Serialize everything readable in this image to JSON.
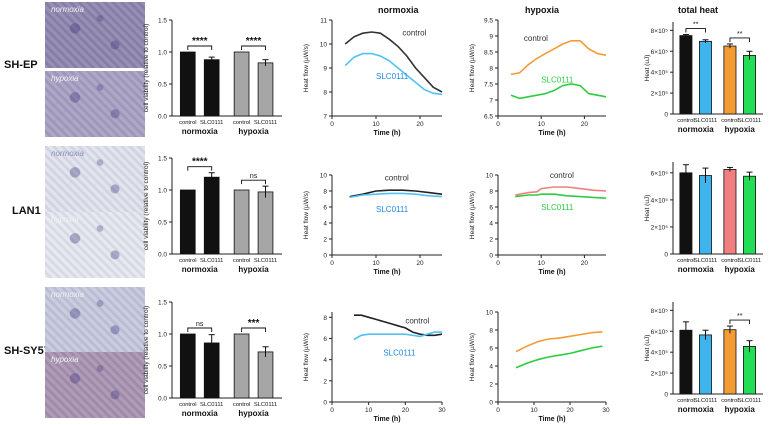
{
  "columns": {
    "normoxia": "normoxia",
    "hypoxia": "hypoxia",
    "total_heat": "total heat"
  },
  "rows": [
    {
      "label": "SH-EP",
      "micro_top": "normoxia",
      "micro_bottom": "hypoxia",
      "micro_colors": [
        "#8f86b0",
        "#a8a0c4"
      ]
    },
    {
      "label": "LAN1",
      "micro_top": "normoxia",
      "micro_bottom": "hypoxia",
      "micro_colors": [
        "#dfe2ee",
        "#e5e7f1"
      ]
    },
    {
      "label": "SH-SY5Y",
      "micro_top": "normoxia",
      "micro_bottom": "hypoxia",
      "micro_colors": [
        "#c6c8de",
        "#a994b3"
      ]
    }
  ],
  "chart_data": [
    {
      "id": "via0",
      "type": "bar",
      "ylabel": "cell viability (relative to control)",
      "yticks": [
        "0.0",
        "0.5",
        "1.0",
        "1.5"
      ],
      "ylim": [
        0,
        1.5
      ],
      "categories": [
        "control",
        "SLC0111",
        "control",
        "SLC0111"
      ],
      "values": [
        1.0,
        0.88,
        1.0,
        0.83
      ],
      "errors": [
        0,
        0.04,
        0,
        0.05
      ],
      "bar_colors": [
        "#111111",
        "#111111",
        "#a6a6a6",
        "#a6a6a6"
      ],
      "groups": [
        "normoxia",
        "hypoxia"
      ],
      "significance": [
        "****",
        "****"
      ]
    },
    {
      "id": "via1",
      "type": "bar",
      "ylabel": "cell viability (relative to control)",
      "yticks": [
        "0.0",
        "0.5",
        "1.0",
        "1.5"
      ],
      "ylim": [
        0,
        1.5
      ],
      "categories": [
        "control",
        "SLC0111",
        "control",
        "SLC0111"
      ],
      "values": [
        1.0,
        1.2,
        1.0,
        0.97
      ],
      "errors": [
        0,
        0.07,
        0,
        0.09
      ],
      "bar_colors": [
        "#111111",
        "#111111",
        "#a6a6a6",
        "#a6a6a6"
      ],
      "groups": [
        "normoxia",
        "hypoxia"
      ],
      "significance": [
        "****",
        "ns"
      ]
    },
    {
      "id": "via2",
      "type": "bar",
      "ylabel": "cell viability (relative to control)",
      "yticks": [
        "0.0",
        "0.5",
        "1.0",
        "1.5"
      ],
      "ylim": [
        0,
        1.5
      ],
      "categories": [
        "control",
        "SLC0111",
        "control",
        "SLC0111"
      ],
      "values": [
        1.0,
        0.86,
        1.0,
        0.72
      ],
      "errors": [
        0,
        0.13,
        0,
        0.08
      ],
      "bar_colors": [
        "#111111",
        "#111111",
        "#a6a6a6",
        "#a6a6a6"
      ],
      "groups": [
        "normoxia",
        "hypoxia"
      ],
      "significance": [
        "ns",
        "***"
      ]
    },
    {
      "id": "hn0",
      "type": "line",
      "xlabel": "Time (h)",
      "ylabel": "Heat flow (µW/s)",
      "xticks": [
        0,
        10,
        20
      ],
      "yticks": [
        7,
        8,
        9,
        10,
        11
      ],
      "xlim": [
        0,
        25
      ],
      "ylim": [
        7,
        11
      ],
      "series": [
        {
          "name": "control",
          "color": "#333333",
          "x": [
            3,
            5,
            7,
            9,
            11,
            13,
            15,
            17,
            19,
            21,
            23,
            25
          ],
          "y": [
            10.0,
            10.3,
            10.45,
            10.5,
            10.45,
            10.2,
            9.9,
            9.5,
            9.0,
            8.6,
            8.2,
            8.0
          ]
        },
        {
          "name": "SLC0111",
          "color": "#4fc3f7",
          "x": [
            3,
            5,
            7,
            9,
            11,
            13,
            15,
            17,
            19,
            21,
            23,
            25
          ],
          "y": [
            9.1,
            9.45,
            9.6,
            9.6,
            9.5,
            9.3,
            9.0,
            8.7,
            8.4,
            8.1,
            7.95,
            7.9
          ]
        }
      ],
      "labels": [
        {
          "text": "control",
          "x": 16,
          "y": 10.35,
          "color": "#333333"
        },
        {
          "text": "SLC0111",
          "x": 10,
          "y": 8.55,
          "color": "#1e88e5"
        }
      ]
    },
    {
      "id": "hh0",
      "type": "line",
      "xlabel": "Time (h)",
      "ylabel": "Heat flow (µW/s)",
      "xticks": [
        0,
        10,
        20
      ],
      "yticks": [
        6.5,
        7.0,
        7.5,
        8.0,
        8.5,
        9.0,
        9.5
      ],
      "ylim": [
        6.5,
        9.5
      ],
      "xlim": [
        0,
        25
      ],
      "series": [
        {
          "name": "control",
          "color": "#f39c34",
          "x": [
            3,
            5,
            7,
            9,
            11,
            13,
            15,
            17,
            19,
            21,
            23,
            25
          ],
          "y": [
            7.8,
            7.85,
            8.1,
            8.3,
            8.45,
            8.6,
            8.75,
            8.85,
            8.85,
            8.6,
            8.45,
            8.4
          ]
        },
        {
          "name": "SLC0111",
          "color": "#2ecc40",
          "x": [
            3,
            5,
            7,
            9,
            11,
            13,
            15,
            17,
            19,
            21,
            23,
            25
          ],
          "y": [
            7.15,
            7.05,
            7.1,
            7.15,
            7.2,
            7.3,
            7.45,
            7.5,
            7.45,
            7.2,
            7.15,
            7.1
          ]
        }
      ],
      "labels": [
        {
          "text": "control",
          "x": 6,
          "y": 8.85,
          "color": "#333333"
        },
        {
          "text": "SLC0111",
          "x": 10,
          "y": 7.55,
          "color": "#2ecc40"
        }
      ]
    },
    {
      "id": "hn1",
      "type": "line",
      "xlabel": "Time (h)",
      "ylabel": "Heat flow (µW/s)",
      "xticks": [
        0,
        10,
        20
      ],
      "yticks": [
        0,
        2,
        4,
        6,
        8,
        10
      ],
      "xlim": [
        0,
        25
      ],
      "ylim": [
        0,
        10
      ],
      "series": [
        {
          "name": "control",
          "color": "#222222",
          "x": [
            4,
            7,
            10,
            13,
            16,
            19,
            22,
            25
          ],
          "y": [
            7.3,
            7.6,
            8.0,
            8.1,
            8.1,
            8.0,
            7.8,
            7.6
          ]
        },
        {
          "name": "SLC0111",
          "color": "#4fc3f7",
          "x": [
            4,
            7,
            10,
            13,
            16,
            19,
            22,
            25
          ],
          "y": [
            7.2,
            7.5,
            7.6,
            7.7,
            7.7,
            7.6,
            7.4,
            7.3
          ]
        }
      ],
      "labels": [
        {
          "text": "control",
          "x": 12,
          "y": 9.3,
          "color": "#333333"
        },
        {
          "text": "SLC0111",
          "x": 10,
          "y": 5.4,
          "color": "#1e88e5"
        }
      ]
    },
    {
      "id": "hh1",
      "type": "line",
      "xlabel": "Time (h)",
      "ylabel": "Heat flow (µW/s)",
      "xticks": [
        0,
        10,
        20
      ],
      "yticks": [
        0,
        2,
        4,
        6,
        8,
        10
      ],
      "xlim": [
        0,
        25
      ],
      "ylim": [
        0,
        10
      ],
      "series": [
        {
          "name": "control",
          "color": "#f08080",
          "x": [
            4,
            7,
            9,
            10,
            13,
            16,
            19,
            22,
            25
          ],
          "y": [
            7.5,
            7.8,
            7.9,
            8.3,
            8.5,
            8.5,
            8.3,
            8.1,
            8.0
          ]
        },
        {
          "name": "SLC0111",
          "color": "#2ecc40",
          "x": [
            4,
            7,
            9,
            10,
            13,
            16,
            19,
            22,
            25
          ],
          "y": [
            7.3,
            7.5,
            7.5,
            7.6,
            7.6,
            7.4,
            7.3,
            7.2,
            7.1
          ]
        }
      ],
      "labels": [
        {
          "text": "control",
          "x": 12,
          "y": 9.6,
          "color": "#333333"
        },
        {
          "text": "SLC0111",
          "x": 10,
          "y": 5.6,
          "color": "#2ecc40"
        }
      ]
    },
    {
      "id": "hn2",
      "type": "line",
      "xlabel": "Time (h)",
      "ylabel": "Heat flow (µW/s)",
      "xticks": [
        0,
        10,
        20,
        30
      ],
      "yticks": [
        0,
        2,
        4,
        6,
        8
      ],
      "xlim": [
        0,
        30
      ],
      "ylim": [
        0,
        8.5
      ],
      "series": [
        {
          "name": "control",
          "color": "#222222",
          "x": [
            6,
            8,
            10,
            12,
            14,
            16,
            18,
            20,
            22,
            24,
            26,
            28,
            30
          ],
          "y": [
            8.2,
            8.2,
            8.0,
            7.8,
            7.6,
            7.4,
            7.2,
            7.0,
            6.6,
            6.4,
            6.3,
            6.3,
            6.4
          ]
        },
        {
          "name": "SLC0111",
          "color": "#4fc3f7",
          "x": [
            6,
            8,
            10,
            12,
            14,
            16,
            18,
            20,
            22,
            24,
            26,
            28,
            30
          ],
          "y": [
            5.9,
            6.3,
            6.4,
            6.4,
            6.4,
            6.4,
            6.4,
            6.4,
            6.3,
            6.2,
            6.4,
            6.6,
            6.6
          ]
        }
      ],
      "labels": [
        {
          "text": "control",
          "x": 20,
          "y": 7.4,
          "color": "#333333"
        },
        {
          "text": "SLC0111",
          "x": 14,
          "y": 4.4,
          "color": "#1e88e5"
        }
      ]
    },
    {
      "id": "hh2",
      "type": "line",
      "xlabel": "Time (h)",
      "ylabel": "Heat flow (µW/s)",
      "xticks": [
        0,
        10,
        20,
        30
      ],
      "yticks": [
        0,
        2,
        4,
        6,
        8,
        10
      ],
      "xlim": [
        0,
        30
      ],
      "ylim": [
        0,
        10
      ],
      "series": [
        {
          "name": "control",
          "color": "#f39c34",
          "x": [
            5,
            8,
            11,
            14,
            17,
            20,
            23,
            26,
            29
          ],
          "y": [
            5.6,
            6.2,
            6.7,
            7.0,
            7.1,
            7.3,
            7.5,
            7.7,
            7.8
          ]
        },
        {
          "name": "SLC0111",
          "color": "#2ecc40",
          "x": [
            5,
            8,
            11,
            14,
            17,
            20,
            23,
            26,
            29
          ],
          "y": [
            3.8,
            4.3,
            4.7,
            5.0,
            5.2,
            5.4,
            5.7,
            6.0,
            6.2
          ]
        }
      ],
      "labels": []
    },
    {
      "id": "th0",
      "type": "bar",
      "ylabel": "Heat (uJ)",
      "yticks": [
        "0",
        "2×10⁵",
        "4×10⁵",
        "6×10⁵",
        "8×10⁵"
      ],
      "ylim": [
        0,
        8.8
      ],
      "categories": [
        "control",
        "SLC0111",
        "control",
        "SLC0111"
      ],
      "values": [
        7.5,
        6.95,
        6.5,
        5.6
      ],
      "errors": [
        0.1,
        0.15,
        0.2,
        0.4
      ],
      "bar_colors": [
        "#111111",
        "#3fb4ec",
        "#f39c34",
        "#22dd55"
      ],
      "groups": [
        "normoxia",
        "hypoxia"
      ],
      "significance": [
        "**",
        "**"
      ]
    },
    {
      "id": "th1",
      "type": "bar",
      "ylabel": "Heat (uJ)",
      "yticks": [
        "0",
        "2×10⁵",
        "4×10⁵",
        "6×10⁵"
      ],
      "ylim": [
        0,
        6.8
      ],
      "categories": [
        "control",
        "SLC0111",
        "control",
        "SLC0111"
      ],
      "values": [
        6.0,
        5.8,
        6.25,
        5.75
      ],
      "errors": [
        0.6,
        0.55,
        0.15,
        0.3
      ],
      "bar_colors": [
        "#111111",
        "#3fb4ec",
        "#f08080",
        "#22dd55"
      ],
      "groups": [
        "normoxia",
        "hypoxia"
      ],
      "significance": [
        "",
        ""
      ]
    },
    {
      "id": "th2",
      "type": "bar",
      "ylabel": "Heat (uJ)",
      "yticks": [
        "0",
        "2×10⁵",
        "4×10⁵",
        "6×10⁵",
        "8×10⁵"
      ],
      "ylim": [
        0,
        8.8
      ],
      "categories": [
        "control",
        "SLC0111",
        "control",
        "SLC0111"
      ],
      "values": [
        6.1,
        5.65,
        6.15,
        4.55
      ],
      "errors": [
        0.8,
        0.45,
        0.35,
        0.55
      ],
      "bar_colors": [
        "#111111",
        "#3fb4ec",
        "#f39c34",
        "#22dd55"
      ],
      "groups": [
        "normoxia",
        "hypoxia"
      ],
      "significance": [
        "",
        "**"
      ]
    }
  ]
}
